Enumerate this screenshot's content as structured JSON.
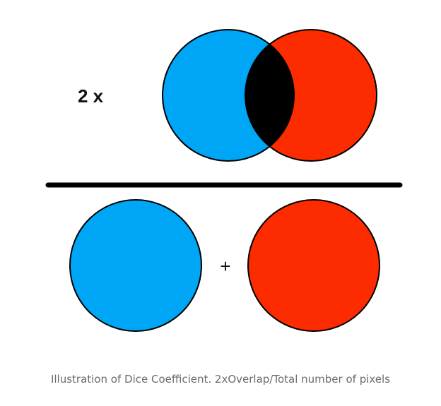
{
  "figure": {
    "multiplier_label": "2 x",
    "plus_label": "+",
    "colors": {
      "set_a": "#00a6f6",
      "set_b": "#fc2b00",
      "overlap": "#000000",
      "outline": "#000000",
      "fraction_bar": "#000000",
      "text": "#111111"
    }
  },
  "caption": {
    "text": "Illustration of Dice Coefficient. 2xOverlap/Total number of pixels"
  }
}
